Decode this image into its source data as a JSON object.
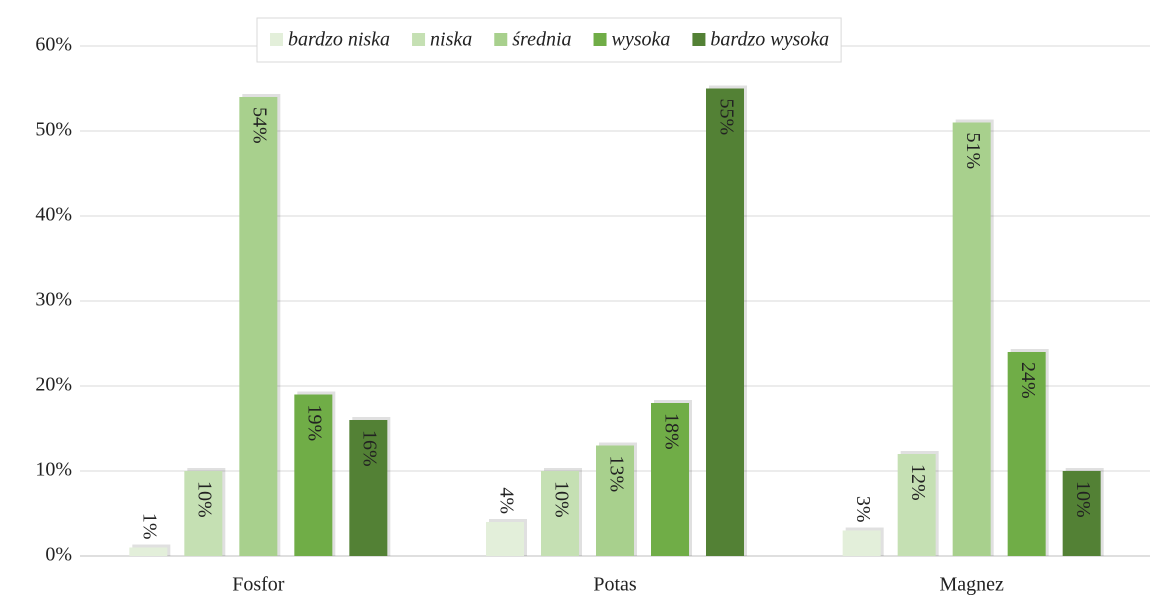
{
  "chart_data": {
    "type": "bar",
    "categories": [
      "Fosfor",
      "Potas",
      "Magnez"
    ],
    "series": [
      {
        "name": "bardzo niska",
        "color": "#e3efda",
        "values": [
          1,
          4,
          3
        ],
        "value_labels": [
          "1%",
          "4%",
          "3%"
        ]
      },
      {
        "name": "niska",
        "color": "#c5e0b3",
        "values": [
          10,
          10,
          12
        ],
        "value_labels": [
          "10%",
          "10%",
          "12%"
        ]
      },
      {
        "name": "średnia",
        "color": "#a8d08d",
        "values": [
          54,
          13,
          51
        ],
        "value_labels": [
          "54%",
          "13%",
          "51%"
        ]
      },
      {
        "name": "wysoka",
        "color": "#70ad47",
        "values": [
          19,
          18,
          24
        ],
        "value_labels": [
          "19%",
          "18%",
          "24%"
        ]
      },
      {
        "name": "bardzo wysoka",
        "color": "#538135",
        "values": [
          16,
          55,
          10
        ],
        "value_labels": [
          "16%",
          "55%",
          "10%"
        ]
      }
    ],
    "ylim": [
      0,
      60
    ],
    "yticks": [
      {
        "value": 0,
        "label": "0%"
      },
      {
        "value": 10,
        "label": "10%"
      },
      {
        "value": 20,
        "label": "20%"
      },
      {
        "value": 30,
        "label": "30%"
      },
      {
        "value": 40,
        "label": "40%"
      },
      {
        "value": 50,
        "label": "50%"
      },
      {
        "value": 60,
        "label": "60%"
      }
    ],
    "grid": true,
    "legend": "top"
  }
}
